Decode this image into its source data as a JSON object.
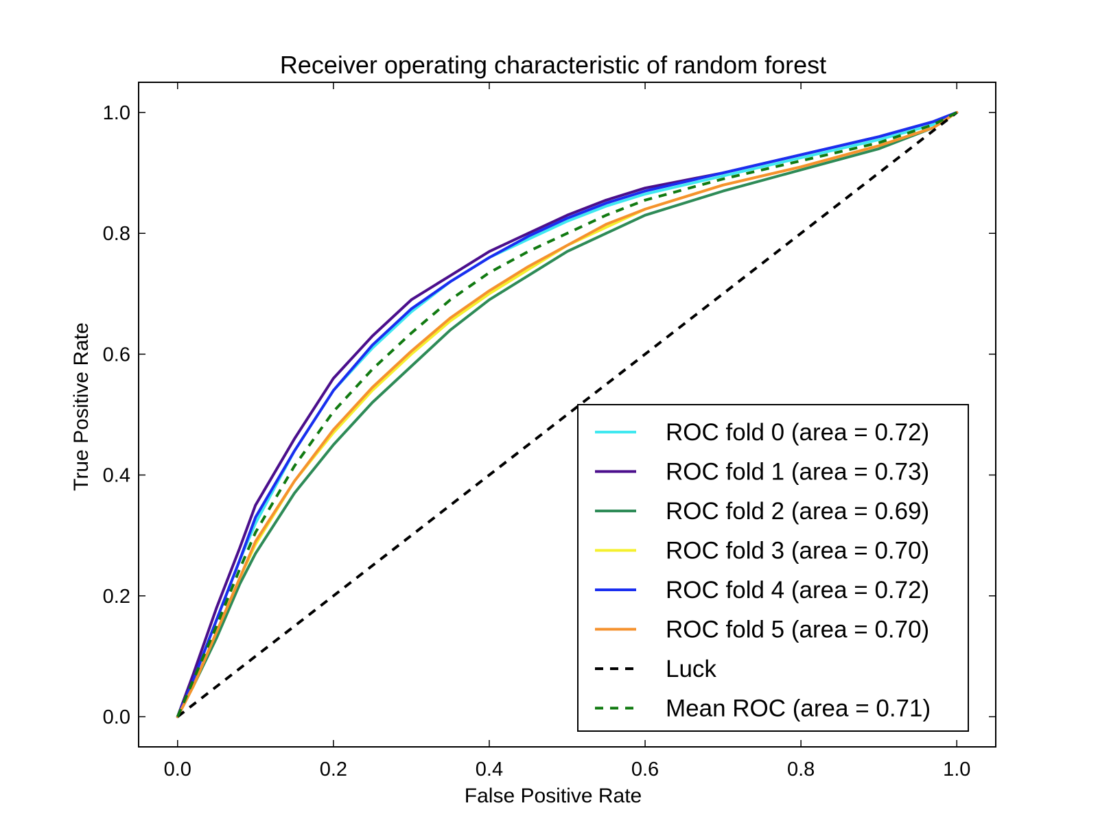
{
  "chart_data": {
    "type": "line",
    "title": "Receiver operating characteristic of random forest",
    "xlabel": "False Positive Rate",
    "ylabel": "True Positive Rate",
    "xlim": [
      -0.05,
      1.05
    ],
    "ylim": [
      -0.05,
      1.05
    ],
    "xticks": [
      "0.0",
      "0.2",
      "0.4",
      "0.6",
      "0.8",
      "1.0"
    ],
    "yticks": [
      "0.0",
      "0.2",
      "0.4",
      "0.6",
      "0.8",
      "1.0"
    ],
    "grid": false,
    "legend_position": "lower-right",
    "series": [
      {
        "name": "ROC fold 0 (area = 0.72)",
        "color": "#40e8f0",
        "dash": false,
        "x": [
          0,
          0.02,
          0.05,
          0.08,
          0.1,
          0.15,
          0.2,
          0.25,
          0.3,
          0.35,
          0.4,
          0.45,
          0.5,
          0.55,
          0.6,
          0.7,
          0.8,
          0.9,
          0.97,
          1.0
        ],
        "y": [
          0,
          0.06,
          0.16,
          0.26,
          0.32,
          0.44,
          0.54,
          0.61,
          0.67,
          0.72,
          0.76,
          0.79,
          0.82,
          0.845,
          0.865,
          0.895,
          0.925,
          0.955,
          0.98,
          1.0
        ]
      },
      {
        "name": "ROC fold 1 (area = 0.73)",
        "color": "#4b0f8c",
        "dash": false,
        "x": [
          0,
          0.02,
          0.05,
          0.08,
          0.1,
          0.15,
          0.2,
          0.25,
          0.3,
          0.35,
          0.4,
          0.45,
          0.5,
          0.55,
          0.6,
          0.7,
          0.8,
          0.9,
          0.97,
          1.0
        ],
        "y": [
          0,
          0.07,
          0.18,
          0.28,
          0.35,
          0.46,
          0.56,
          0.63,
          0.69,
          0.73,
          0.77,
          0.8,
          0.83,
          0.855,
          0.875,
          0.9,
          0.93,
          0.96,
          0.985,
          1.0
        ]
      },
      {
        "name": "ROC fold 2 (area = 0.69)",
        "color": "#2e8b57",
        "dash": false,
        "x": [
          0,
          0.02,
          0.05,
          0.08,
          0.1,
          0.15,
          0.2,
          0.25,
          0.3,
          0.35,
          0.4,
          0.45,
          0.5,
          0.55,
          0.6,
          0.7,
          0.8,
          0.9,
          0.97,
          1.0
        ],
        "y": [
          0,
          0.05,
          0.13,
          0.22,
          0.27,
          0.37,
          0.45,
          0.52,
          0.58,
          0.64,
          0.69,
          0.73,
          0.77,
          0.8,
          0.83,
          0.87,
          0.905,
          0.94,
          0.975,
          1.0
        ]
      },
      {
        "name": "ROC fold 3 (area = 0.70)",
        "color": "#f5f02e",
        "dash": false,
        "x": [
          0,
          0.02,
          0.05,
          0.08,
          0.1,
          0.15,
          0.2,
          0.25,
          0.3,
          0.35,
          0.4,
          0.45,
          0.5,
          0.55,
          0.6,
          0.7,
          0.8,
          0.9,
          0.97,
          1.0
        ],
        "y": [
          0,
          0.05,
          0.14,
          0.23,
          0.285,
          0.39,
          0.47,
          0.54,
          0.6,
          0.655,
          0.7,
          0.74,
          0.78,
          0.81,
          0.84,
          0.88,
          0.91,
          0.945,
          0.975,
          1.0
        ]
      },
      {
        "name": "ROC fold 4 (area = 0.72)",
        "color": "#1a2ef0",
        "dash": false,
        "x": [
          0,
          0.02,
          0.05,
          0.08,
          0.1,
          0.15,
          0.2,
          0.25,
          0.3,
          0.35,
          0.4,
          0.45,
          0.5,
          0.55,
          0.6,
          0.7,
          0.8,
          0.9,
          0.97,
          1.0
        ],
        "y": [
          0,
          0.06,
          0.16,
          0.26,
          0.33,
          0.44,
          0.54,
          0.615,
          0.675,
          0.72,
          0.76,
          0.795,
          0.825,
          0.85,
          0.87,
          0.9,
          0.93,
          0.96,
          0.985,
          1.0
        ]
      },
      {
        "name": "ROC fold 5 (area = 0.70)",
        "color": "#f5922e",
        "dash": false,
        "x": [
          0,
          0.02,
          0.05,
          0.08,
          0.1,
          0.15,
          0.2,
          0.25,
          0.3,
          0.35,
          0.4,
          0.45,
          0.5,
          0.55,
          0.6,
          0.7,
          0.8,
          0.9,
          0.97,
          1.0
        ],
        "y": [
          0,
          0.05,
          0.14,
          0.23,
          0.29,
          0.39,
          0.475,
          0.545,
          0.605,
          0.66,
          0.705,
          0.745,
          0.78,
          0.815,
          0.84,
          0.88,
          0.91,
          0.945,
          0.975,
          1.0
        ]
      },
      {
        "name": "Luck",
        "color": "#000000",
        "dash": true,
        "x": [
          0,
          1
        ],
        "y": [
          0,
          1
        ]
      },
      {
        "name": "Mean ROC (area = 0.71)",
        "color": "#117a11",
        "dash": true,
        "x": [
          0,
          0.02,
          0.05,
          0.08,
          0.1,
          0.15,
          0.2,
          0.25,
          0.3,
          0.35,
          0.4,
          0.45,
          0.5,
          0.55,
          0.6,
          0.7,
          0.8,
          0.9,
          0.97,
          1.0
        ],
        "y": [
          0,
          0.06,
          0.15,
          0.245,
          0.305,
          0.415,
          0.505,
          0.575,
          0.635,
          0.69,
          0.735,
          0.77,
          0.8,
          0.83,
          0.855,
          0.89,
          0.92,
          0.95,
          0.98,
          1.0
        ]
      }
    ]
  }
}
